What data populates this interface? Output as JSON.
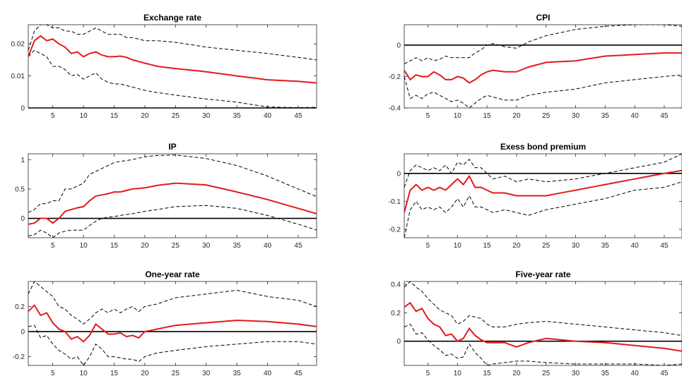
{
  "colors": {
    "response": "#e41a1c",
    "bands": "#000000",
    "zero_line": "#000000"
  },
  "chart_data": [
    {
      "type": "line",
      "title": "Exchange rate",
      "xlim": [
        1,
        48
      ],
      "ylim": [
        0,
        0.026
      ],
      "xticks": [
        5,
        10,
        15,
        20,
        25,
        30,
        35,
        40,
        45
      ],
      "yticks": [
        0,
        0.01,
        0.02
      ],
      "ytick_labels": [
        "0",
        "0.01",
        "0.02"
      ],
      "zero_line": false,
      "x_knots": [
        1,
        2,
        3,
        4,
        5,
        6,
        7,
        8,
        9,
        10,
        11,
        12,
        13,
        14,
        15,
        16,
        17,
        18,
        20,
        22,
        25,
        30,
        35,
        40,
        45,
        48
      ],
      "series": [
        {
          "role": "upper",
          "style": "dashed",
          "values": [
            0.018,
            0.024,
            0.026,
            0.026,
            0.025,
            0.025,
            0.024,
            0.024,
            0.023,
            0.023,
            0.024,
            0.025,
            0.024,
            0.023,
            0.023,
            0.023,
            0.022,
            0.022,
            0.021,
            0.021,
            0.0205,
            0.019,
            0.018,
            0.017,
            0.0158,
            0.015
          ]
        },
        {
          "role": "response",
          "style": "solid",
          "values": [
            0.016,
            0.021,
            0.0225,
            0.021,
            0.0215,
            0.02,
            0.019,
            0.017,
            0.0175,
            0.016,
            0.017,
            0.0175,
            0.0165,
            0.016,
            0.016,
            0.0162,
            0.0158,
            0.015,
            0.014,
            0.013,
            0.0123,
            0.0113,
            0.01,
            0.0088,
            0.0083,
            0.0078
          ]
        },
        {
          "role": "lower",
          "style": "dashed",
          "values": [
            0.016,
            0.018,
            0.017,
            0.016,
            0.013,
            0.013,
            0.012,
            0.01,
            0.0105,
            0.009,
            0.01,
            0.011,
            0.009,
            0.008,
            0.0075,
            0.0075,
            0.007,
            0.0065,
            0.0055,
            0.0048,
            0.004,
            0.0028,
            0.0018,
            0.0003,
            0.0001,
            0.0002
          ]
        }
      ]
    },
    {
      "type": "line",
      "title": "CPI",
      "xlim": [
        1,
        48
      ],
      "ylim": [
        -0.4,
        0.13
      ],
      "xticks": [
        5,
        10,
        15,
        20,
        25,
        30,
        35,
        40,
        45
      ],
      "yticks": [
        -0.4,
        -0.2,
        0
      ],
      "ytick_labels": [
        "-0.4",
        "-0.2",
        "0"
      ],
      "zero_line": true,
      "x_knots": [
        1,
        2,
        3,
        4,
        5,
        6,
        7,
        8,
        9,
        10,
        11,
        12,
        13,
        14,
        15,
        16,
        18,
        20,
        22,
        25,
        30,
        35,
        40,
        45,
        48
      ],
      "series": [
        {
          "role": "upper",
          "style": "dashed",
          "values": [
            -0.12,
            -0.1,
            -0.08,
            -0.1,
            -0.08,
            -0.1,
            -0.09,
            -0.07,
            -0.08,
            -0.08,
            -0.08,
            -0.08,
            -0.05,
            -0.03,
            0.0,
            0.01,
            -0.01,
            -0.02,
            0.02,
            0.06,
            0.1,
            0.12,
            0.13,
            0.13,
            0.12
          ]
        },
        {
          "role": "response",
          "style": "solid",
          "values": [
            -0.16,
            -0.22,
            -0.19,
            -0.2,
            -0.2,
            -0.17,
            -0.19,
            -0.22,
            -0.22,
            -0.2,
            -0.21,
            -0.24,
            -0.22,
            -0.19,
            -0.17,
            -0.16,
            -0.17,
            -0.17,
            -0.14,
            -0.11,
            -0.1,
            -0.07,
            -0.06,
            -0.05,
            -0.05
          ]
        },
        {
          "role": "lower",
          "style": "dashed",
          "values": [
            -0.2,
            -0.34,
            -0.32,
            -0.34,
            -0.31,
            -0.3,
            -0.32,
            -0.34,
            -0.36,
            -0.35,
            -0.37,
            -0.4,
            -0.37,
            -0.34,
            -0.32,
            -0.33,
            -0.35,
            -0.35,
            -0.32,
            -0.3,
            -0.28,
            -0.24,
            -0.22,
            -0.2,
            -0.19
          ]
        }
      ]
    },
    {
      "type": "line",
      "title": "IP",
      "xlim": [
        1,
        48
      ],
      "ylim": [
        -0.33,
        1.1
      ],
      "xticks": [
        5,
        10,
        15,
        20,
        25,
        30,
        35,
        40,
        45
      ],
      "yticks": [
        0,
        0.5,
        1
      ],
      "ytick_labels": [
        "0",
        "0.5",
        "1"
      ],
      "zero_line": true,
      "x_knots": [
        1,
        2,
        3,
        4,
        5,
        6,
        7,
        8,
        9,
        10,
        11,
        12,
        13,
        14,
        15,
        16,
        18,
        20,
        22,
        25,
        30,
        35,
        40,
        45,
        48
      ],
      "series": [
        {
          "role": "upper",
          "style": "dashed",
          "values": [
            0.1,
            0.15,
            0.25,
            0.25,
            0.3,
            0.3,
            0.5,
            0.5,
            0.55,
            0.6,
            0.75,
            0.8,
            0.85,
            0.9,
            0.95,
            0.97,
            1.0,
            1.05,
            1.07,
            1.08,
            1.02,
            0.9,
            0.72,
            0.5,
            0.37
          ]
        },
        {
          "role": "response",
          "style": "solid",
          "values": [
            -0.1,
            -0.08,
            0.0,
            0.0,
            -0.08,
            0.0,
            0.12,
            0.15,
            0.18,
            0.2,
            0.3,
            0.38,
            0.4,
            0.42,
            0.45,
            0.45,
            0.5,
            0.52,
            0.56,
            0.6,
            0.57,
            0.45,
            0.32,
            0.17,
            0.08
          ]
        },
        {
          "role": "lower",
          "style": "dashed",
          "values": [
            -0.3,
            -0.28,
            -0.2,
            -0.25,
            -0.33,
            -0.25,
            -0.22,
            -0.2,
            -0.2,
            -0.2,
            -0.12,
            -0.05,
            0.0,
            0.02,
            0.03,
            0.05,
            0.08,
            0.12,
            0.15,
            0.2,
            0.22,
            0.17,
            0.05,
            -0.1,
            -0.2
          ]
        }
      ]
    },
    {
      "type": "line",
      "title": "Exess bond premium",
      "xlim": [
        1,
        48
      ],
      "ylim": [
        -0.23,
        0.07
      ],
      "xticks": [
        5,
        10,
        15,
        20,
        25,
        30,
        35,
        40,
        45
      ],
      "yticks": [
        -0.2,
        -0.1,
        0
      ],
      "ytick_labels": [
        "-0.2",
        "-0.1",
        "0"
      ],
      "zero_line": true,
      "x_knots": [
        1,
        2,
        3,
        4,
        5,
        6,
        7,
        8,
        9,
        10,
        11,
        12,
        13,
        14,
        15,
        16,
        18,
        20,
        22,
        25,
        30,
        35,
        40,
        45,
        48
      ],
      "series": [
        {
          "role": "upper",
          "style": "dashed",
          "values": [
            -0.05,
            0.01,
            0.03,
            0.02,
            0.01,
            0.02,
            0.01,
            0.03,
            0.0,
            0.04,
            0.03,
            0.05,
            0.02,
            0.02,
            0.0,
            -0.02,
            -0.01,
            -0.03,
            -0.02,
            -0.03,
            -0.02,
            0.0,
            0.02,
            0.04,
            0.07
          ]
        },
        {
          "role": "response",
          "style": "solid",
          "values": [
            -0.14,
            -0.06,
            -0.04,
            -0.06,
            -0.05,
            -0.06,
            -0.05,
            -0.06,
            -0.04,
            -0.02,
            -0.04,
            -0.01,
            -0.05,
            -0.05,
            -0.06,
            -0.07,
            -0.07,
            -0.08,
            -0.08,
            -0.08,
            -0.06,
            -0.04,
            -0.02,
            0.0,
            0.01
          ]
        },
        {
          "role": "lower",
          "style": "dashed",
          "values": [
            -0.23,
            -0.13,
            -0.1,
            -0.13,
            -0.12,
            -0.13,
            -0.12,
            -0.14,
            -0.12,
            -0.09,
            -0.12,
            -0.08,
            -0.12,
            -0.12,
            -0.13,
            -0.14,
            -0.13,
            -0.14,
            -0.15,
            -0.13,
            -0.11,
            -0.09,
            -0.06,
            -0.05,
            -0.03
          ]
        }
      ]
    },
    {
      "type": "line",
      "title": "One-year rate",
      "xlim": [
        1,
        48
      ],
      "ylim": [
        -0.27,
        0.4
      ],
      "xticks": [
        5,
        10,
        15,
        20,
        25,
        30,
        35,
        40,
        45
      ],
      "yticks": [
        -0.2,
        0,
        0.2
      ],
      "ytick_labels": [
        "-0.2",
        "0",
        "0.2"
      ],
      "zero_line": true,
      "x_knots": [
        1,
        2,
        3,
        4,
        5,
        6,
        7,
        8,
        9,
        10,
        11,
        12,
        13,
        14,
        15,
        16,
        17,
        18,
        19,
        20,
        22,
        25,
        30,
        35,
        40,
        45,
        48
      ],
      "series": [
        {
          "role": "upper",
          "style": "dashed",
          "values": [
            0.3,
            0.4,
            0.36,
            0.32,
            0.28,
            0.2,
            0.18,
            0.13,
            0.1,
            0.06,
            0.1,
            0.15,
            0.18,
            0.15,
            0.18,
            0.15,
            0.18,
            0.2,
            0.16,
            0.2,
            0.22,
            0.27,
            0.3,
            0.33,
            0.28,
            0.25,
            0.2
          ]
        },
        {
          "role": "response",
          "style": "solid",
          "values": [
            0.16,
            0.21,
            0.13,
            0.15,
            0.07,
            0.02,
            0.0,
            -0.06,
            -0.04,
            -0.08,
            -0.03,
            0.06,
            0.02,
            -0.02,
            -0.02,
            -0.01,
            -0.04,
            -0.03,
            -0.05,
            0.0,
            0.02,
            0.05,
            0.07,
            0.09,
            0.08,
            0.06,
            0.04
          ]
        },
        {
          "role": "lower",
          "style": "dashed",
          "values": [
            0.04,
            0.05,
            -0.05,
            -0.03,
            -0.1,
            -0.15,
            -0.18,
            -0.22,
            -0.2,
            -0.27,
            -0.2,
            -0.1,
            -0.14,
            -0.2,
            -0.2,
            -0.21,
            -0.22,
            -0.22,
            -0.24,
            -0.2,
            -0.17,
            -0.15,
            -0.12,
            -0.1,
            -0.08,
            -0.08,
            -0.1
          ]
        }
      ]
    },
    {
      "type": "line",
      "title": "Five-year rate",
      "xlim": [
        1,
        48
      ],
      "ylim": [
        -0.17,
        0.42
      ],
      "xticks": [
        5,
        10,
        15,
        20,
        25,
        30,
        35,
        40,
        45
      ],
      "yticks": [
        0,
        0.2,
        0.4
      ],
      "ytick_labels": [
        "0",
        "0.2",
        "0.4"
      ],
      "zero_line": true,
      "x_knots": [
        1,
        2,
        3,
        4,
        5,
        6,
        7,
        8,
        9,
        10,
        11,
        12,
        13,
        14,
        15,
        16,
        18,
        20,
        22,
        25,
        30,
        35,
        40,
        45,
        48
      ],
      "series": [
        {
          "role": "upper",
          "style": "dashed",
          "values": [
            0.38,
            0.42,
            0.38,
            0.35,
            0.3,
            0.26,
            0.22,
            0.2,
            0.18,
            0.12,
            0.14,
            0.18,
            0.17,
            0.16,
            0.12,
            0.1,
            0.1,
            0.12,
            0.13,
            0.14,
            0.12,
            0.1,
            0.08,
            0.06,
            0.04
          ]
        },
        {
          "role": "response",
          "style": "solid",
          "values": [
            0.24,
            0.27,
            0.21,
            0.23,
            0.16,
            0.12,
            0.1,
            0.04,
            0.05,
            0.0,
            0.02,
            0.09,
            0.04,
            0.01,
            -0.01,
            -0.01,
            -0.01,
            -0.04,
            -0.01,
            0.02,
            0.0,
            -0.01,
            -0.03,
            -0.05,
            -0.07
          ]
        },
        {
          "role": "lower",
          "style": "dashed",
          "values": [
            0.1,
            0.12,
            0.05,
            0.06,
            0.01,
            -0.03,
            -0.06,
            -0.1,
            -0.09,
            -0.12,
            -0.11,
            -0.02,
            -0.08,
            -0.12,
            -0.17,
            -0.16,
            -0.15,
            -0.14,
            -0.14,
            -0.15,
            -0.16,
            -0.16,
            -0.16,
            -0.17,
            -0.16
          ]
        }
      ]
    }
  ]
}
